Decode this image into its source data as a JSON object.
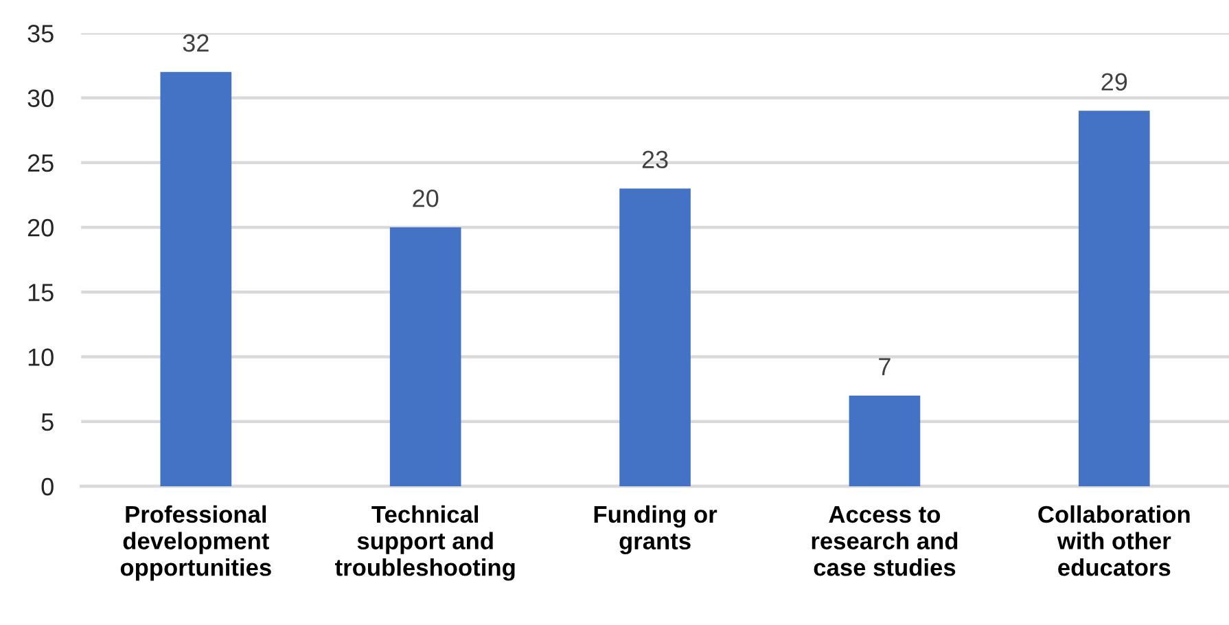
{
  "chart_data": {
    "type": "bar",
    "categories": [
      "Professional\ndevelopment\nopportunities",
      "Technical\nsupport and\ntroubleshooting",
      "Funding or\ngrants",
      "Access to\nresearch and\ncase studies",
      "Collaboration\nwith other\neducators"
    ],
    "values": [
      32,
      20,
      23,
      7,
      29
    ],
    "color": "#4472c4",
    "ylim": [
      0,
      35
    ],
    "yticks": [
      0,
      5,
      10,
      15,
      20,
      25,
      30,
      35
    ],
    "grid": "y",
    "data_labels": true
  }
}
